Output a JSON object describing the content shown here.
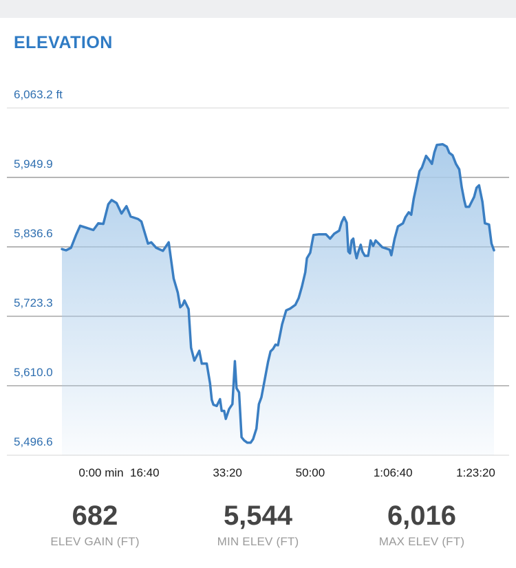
{
  "title": "ELEVATION",
  "chart_data": {
    "type": "area",
    "y_unit": "ft",
    "y_ticks": [
      "6,063.2 ft",
      "5,949.9",
      "5,836.6",
      "5,723.3",
      "5,610.0",
      "5,496.6"
    ],
    "y_tick_values": [
      6063.2,
      5949.9,
      5836.6,
      5723.3,
      5610.0,
      5496.6
    ],
    "ylim": [
      5496.6,
      6063.2
    ],
    "x_ticks": [
      "0:00 min",
      "16:40",
      "33:20",
      "50:00",
      "1:06:40",
      "1:23:20"
    ],
    "x_tick_values": [
      0,
      1000,
      2000,
      3000,
      4000,
      5000
    ],
    "x_unit": "seconds",
    "xlim": [
      0,
      5700
    ],
    "grid": true,
    "line_color": "#3a7ec2",
    "fill_color": "#a9cbea",
    "series": [
      {
        "points": [
          [
            0,
            5833
          ],
          [
            50,
            5831
          ],
          [
            110,
            5835
          ],
          [
            170,
            5856
          ],
          [
            220,
            5871
          ],
          [
            380,
            5864
          ],
          [
            440,
            5875
          ],
          [
            500,
            5874
          ],
          [
            560,
            5906
          ],
          [
            600,
            5913
          ],
          [
            660,
            5908
          ],
          [
            720,
            5891
          ],
          [
            780,
            5903
          ],
          [
            830,
            5886
          ],
          [
            920,
            5882
          ],
          [
            960,
            5878
          ],
          [
            1040,
            5842
          ],
          [
            1080,
            5844
          ],
          [
            1140,
            5835
          ],
          [
            1220,
            5830
          ],
          [
            1290,
            5844
          ],
          [
            1350,
            5785
          ],
          [
            1400,
            5762
          ],
          [
            1430,
            5738
          ],
          [
            1460,
            5742
          ],
          [
            1480,
            5749
          ],
          [
            1530,
            5735
          ],
          [
            1560,
            5672
          ],
          [
            1600,
            5651
          ],
          [
            1660,
            5667
          ],
          [
            1690,
            5646
          ],
          [
            1750,
            5646
          ],
          [
            1790,
            5614
          ],
          [
            1810,
            5587
          ],
          [
            1830,
            5579
          ],
          [
            1870,
            5577
          ],
          [
            1910,
            5588
          ],
          [
            1930,
            5569
          ],
          [
            1960,
            5569
          ],
          [
            1980,
            5556
          ],
          [
            2020,
            5572
          ],
          [
            2060,
            5580
          ],
          [
            2090,
            5650
          ],
          [
            2110,
            5606
          ],
          [
            2140,
            5599
          ],
          [
            2170,
            5526
          ],
          [
            2200,
            5521
          ],
          [
            2240,
            5517
          ],
          [
            2280,
            5517
          ],
          [
            2310,
            5523
          ],
          [
            2350,
            5540
          ],
          [
            2380,
            5580
          ],
          [
            2410,
            5591
          ],
          [
            2450,
            5620
          ],
          [
            2490,
            5649
          ],
          [
            2520,
            5666
          ],
          [
            2550,
            5670
          ],
          [
            2580,
            5677
          ],
          [
            2610,
            5676
          ],
          [
            2660,
            5710
          ],
          [
            2710,
            5733
          ],
          [
            2760,
            5736
          ],
          [
            2820,
            5742
          ],
          [
            2860,
            5753
          ],
          [
            2900,
            5772
          ],
          [
            2940,
            5795
          ],
          [
            2960,
            5818
          ],
          [
            3000,
            5827
          ],
          [
            3020,
            5842
          ],
          [
            3040,
            5856
          ],
          [
            3100,
            5857
          ],
          [
            3190,
            5857
          ],
          [
            3240,
            5850
          ],
          [
            3290,
            5858
          ],
          [
            3350,
            5863
          ],
          [
            3380,
            5877
          ],
          [
            3410,
            5885
          ],
          [
            3440,
            5876
          ],
          [
            3460,
            5829
          ],
          [
            3480,
            5826
          ],
          [
            3500,
            5847
          ],
          [
            3520,
            5850
          ],
          [
            3540,
            5830
          ],
          [
            3560,
            5818
          ],
          [
            3580,
            5828
          ],
          [
            3610,
            5840
          ],
          [
            3630,
            5829
          ],
          [
            3660,
            5822
          ],
          [
            3700,
            5822
          ],
          [
            3730,
            5847
          ],
          [
            3760,
            5838
          ],
          [
            3790,
            5847
          ],
          [
            3820,
            5843
          ],
          [
            3870,
            5836
          ],
          [
            3960,
            5832
          ],
          [
            3980,
            5823
          ],
          [
            4020,
            5850
          ],
          [
            4060,
            5870
          ],
          [
            4120,
            5875
          ],
          [
            4150,
            5885
          ],
          [
            4190,
            5893
          ],
          [
            4220,
            5889
          ],
          [
            4250,
            5915
          ],
          [
            4290,
            5940
          ],
          [
            4320,
            5960
          ],
          [
            4350,
            5966
          ],
          [
            4400,
            5985
          ],
          [
            4440,
            5978
          ],
          [
            4470,
            5972
          ],
          [
            4500,
            5991
          ],
          [
            4530,
            6003
          ],
          [
            4600,
            6004
          ],
          [
            4650,
            6000
          ],
          [
            4680,
            5990
          ],
          [
            4720,
            5986
          ],
          [
            4760,
            5972
          ],
          [
            4800,
            5963
          ],
          [
            4830,
            5934
          ],
          [
            4860,
            5913
          ],
          [
            4880,
            5902
          ],
          [
            4920,
            5902
          ],
          [
            4950,
            5910
          ],
          [
            4980,
            5918
          ],
          [
            5010,
            5933
          ],
          [
            5040,
            5937
          ],
          [
            5080,
            5910
          ],
          [
            5110,
            5875
          ],
          [
            5160,
            5873
          ],
          [
            5190,
            5842
          ],
          [
            5220,
            5831
          ]
        ]
      }
    ]
  },
  "stats": [
    {
      "value": "682",
      "label": "ELEV GAIN (FT)"
    },
    {
      "value": "5,544",
      "label": "MIN ELEV (FT)"
    },
    {
      "value": "6,016",
      "label": "MAX ELEV (FT)"
    }
  ]
}
